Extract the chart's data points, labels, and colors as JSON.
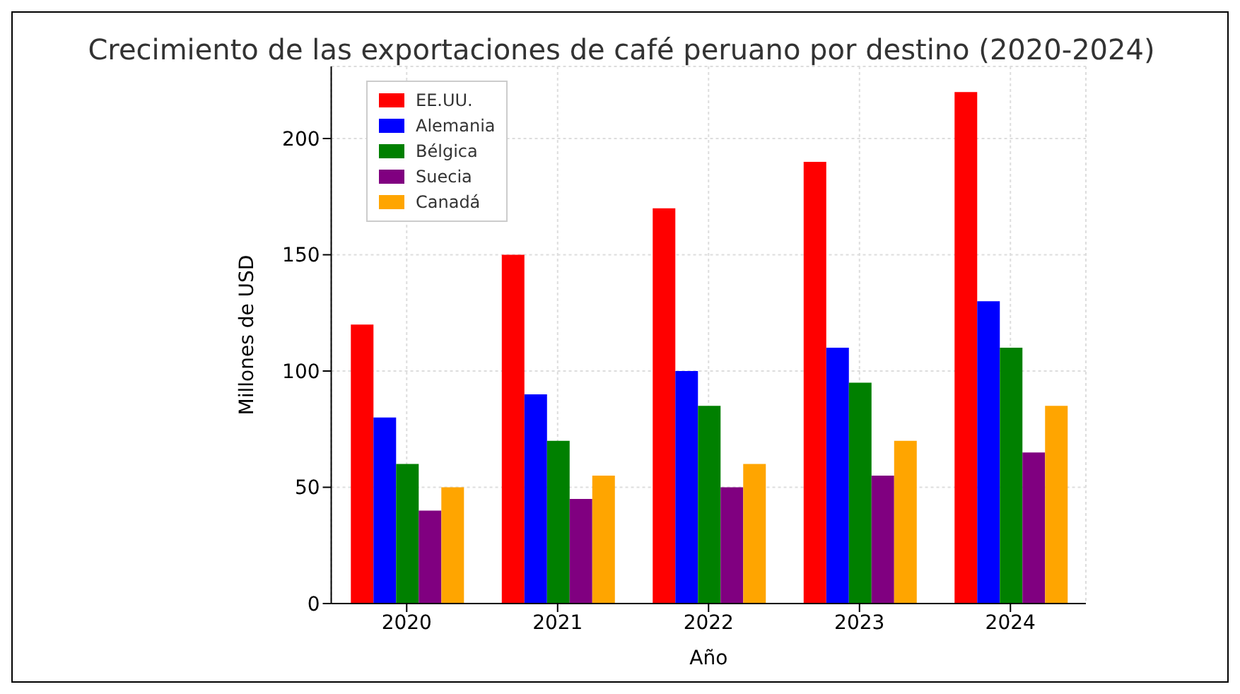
{
  "chart_data": {
    "type": "bar",
    "title": "Crecimiento de las exportaciones de café peruano por destino (2020-2024)",
    "xlabel": "Año",
    "ylabel": "Millones de USD",
    "categories": [
      "2020",
      "2021",
      "2022",
      "2023",
      "2024"
    ],
    "series": [
      {
        "name": "EE.UU.",
        "color": "#ff0000",
        "values": [
          120,
          150,
          170,
          190,
          220
        ]
      },
      {
        "name": "Alemania",
        "color": "#0000ff",
        "values": [
          80,
          90,
          100,
          110,
          130
        ]
      },
      {
        "name": "Bélgica",
        "color": "#008000",
        "values": [
          60,
          70,
          85,
          95,
          110
        ]
      },
      {
        "name": "Suecia",
        "color": "#800080",
        "values": [
          40,
          45,
          50,
          55,
          65
        ]
      },
      {
        "name": "Canadá",
        "color": "#ffa500",
        "values": [
          50,
          55,
          60,
          70,
          85
        ]
      }
    ],
    "ylim": [
      0,
      231
    ],
    "yticks": [
      0,
      50,
      100,
      150,
      200
    ],
    "grid": true,
    "legend": "top left"
  }
}
